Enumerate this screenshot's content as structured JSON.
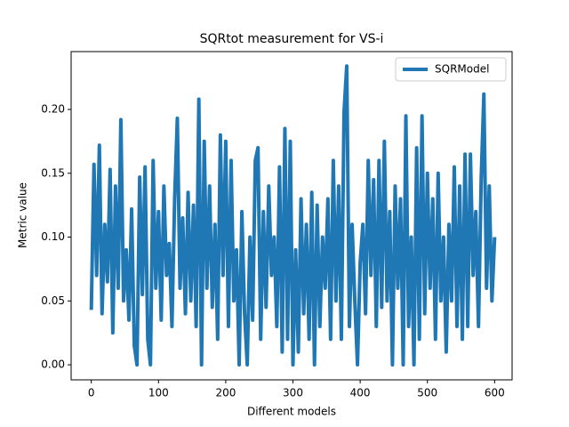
{
  "chart_data": {
    "type": "line",
    "title": "SQRtot measurement for VS-i",
    "xlabel": "Different models",
    "ylabel": "Metric value",
    "x": [
      0,
      4,
      8,
      12,
      16,
      20,
      24,
      28,
      32,
      36,
      40,
      44,
      48,
      52,
      56,
      60,
      64,
      68,
      72,
      76,
      80,
      84,
      88,
      92,
      96,
      100,
      104,
      108,
      112,
      116,
      120,
      124,
      128,
      132,
      136,
      140,
      144,
      148,
      152,
      156,
      160,
      164,
      168,
      172,
      176,
      180,
      184,
      188,
      192,
      196,
      200,
      204,
      208,
      212,
      216,
      220,
      224,
      228,
      232,
      236,
      240,
      244,
      248,
      252,
      256,
      260,
      264,
      268,
      272,
      276,
      280,
      284,
      288,
      292,
      296,
      300,
      304,
      308,
      312,
      316,
      320,
      324,
      328,
      332,
      336,
      340,
      344,
      348,
      352,
      356,
      360,
      364,
      368,
      372,
      376,
      380,
      384,
      388,
      392,
      396,
      400,
      404,
      408,
      412,
      416,
      420,
      424,
      428,
      432,
      436,
      440,
      444,
      448,
      452,
      456,
      460,
      464,
      468,
      472,
      476,
      480,
      484,
      488,
      492,
      496,
      500,
      504,
      508,
      512,
      516,
      520,
      524,
      528,
      532,
      536,
      540,
      544,
      548,
      552,
      556,
      560,
      564,
      568,
      572,
      576,
      580,
      584,
      588,
      592,
      596,
      600
    ],
    "series": [
      {
        "name": "SQRModel",
        "color": "#1f77b4",
        "values": [
          0.043,
          0.157,
          0.07,
          0.172,
          0.04,
          0.11,
          0.065,
          0.153,
          0.025,
          0.14,
          0.06,
          0.192,
          0.05,
          0.09,
          0.035,
          0.122,
          0.015,
          0.0,
          0.147,
          0.055,
          0.155,
          0.02,
          0.0,
          0.16,
          0.06,
          0.12,
          0.035,
          0.14,
          0.07,
          0.095,
          0.03,
          0.13,
          0.193,
          0.06,
          0.115,
          0.04,
          0.135,
          0.05,
          0.125,
          0.03,
          0.208,
          0.0,
          0.175,
          0.06,
          0.14,
          0.045,
          0.11,
          0.02,
          0.18,
          0.07,
          0.175,
          0.03,
          0.16,
          0.05,
          0.09,
          0.0,
          0.12,
          0.04,
          0.0,
          0.1,
          0.035,
          0.16,
          0.17,
          0.02,
          0.12,
          0.045,
          0.14,
          0.07,
          0.1,
          0.03,
          0.155,
          0.01,
          0.185,
          0.02,
          0.175,
          0.0,
          0.09,
          0.01,
          0.13,
          0.04,
          0.11,
          0.02,
          0.135,
          0.0,
          0.125,
          0.03,
          0.1,
          0.06,
          0.13,
          0.02,
          0.16,
          0.05,
          0.14,
          0.02,
          0.198,
          0.234,
          0.03,
          0.11,
          0.05,
          0.0,
          0.08,
          0.11,
          0.04,
          0.16,
          0.07,
          0.145,
          0.03,
          0.16,
          0.045,
          0.175,
          0.05,
          0.12,
          0.0,
          0.14,
          0.06,
          0.13,
          0.0,
          0.195,
          0.03,
          0.1,
          0.0,
          0.17,
          0.02,
          0.195,
          0.04,
          0.15,
          0.06,
          0.13,
          0.02,
          0.15,
          0.05,
          0.1,
          0.01,
          0.11,
          0.05,
          0.155,
          0.03,
          0.14,
          0.02,
          0.165,
          0.03,
          0.165,
          0.07,
          0.12,
          0.03,
          0.145,
          0.212,
          0.06,
          0.14,
          0.05,
          0.1
        ]
      }
    ],
    "xlim": [
      -30,
      626
    ],
    "ylim": [
      -0.0118,
      0.2453
    ],
    "xticks": [
      0,
      100,
      200,
      300,
      400,
      500,
      600
    ],
    "yticks": [
      {
        "value": 0,
        "label": "0.00"
      },
      {
        "value": 0.05,
        "label": "0.05"
      },
      {
        "value": 0.1,
        "label": "0.10"
      },
      {
        "value": 0.15,
        "label": "0.15"
      },
      {
        "value": 0.2,
        "label": "0.20"
      }
    ],
    "legend": "upper right"
  }
}
